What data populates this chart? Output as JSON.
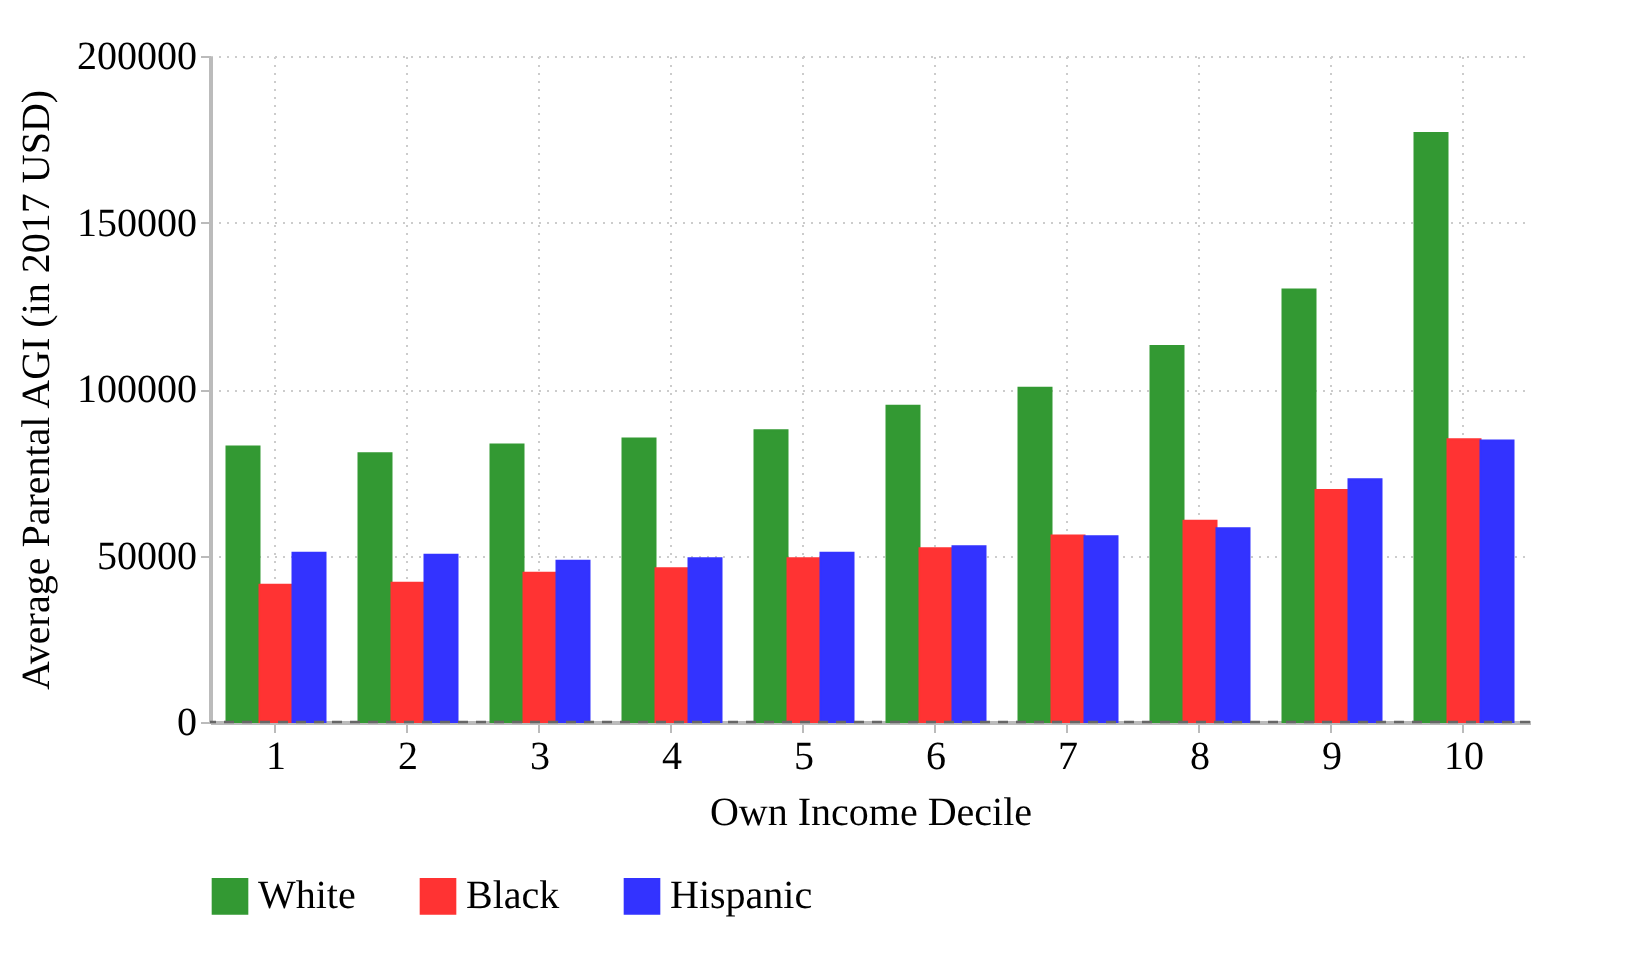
{
  "chart_data": {
    "type": "bar",
    "xlabel": "Own Income Decile",
    "ylabel": "Average Parental AGI (in 2017 USD)",
    "categories": [
      "1",
      "2",
      "3",
      "4",
      "5",
      "6",
      "7",
      "8",
      "9",
      "10"
    ],
    "series": [
      {
        "name": "White",
        "color": "#339933",
        "values": [
          82700,
          80700,
          83300,
          85100,
          87600,
          95000,
          100400,
          112900,
          129900,
          176900
        ]
      },
      {
        "name": "Black",
        "color": "#ff3333",
        "values": [
          41200,
          41800,
          44800,
          46200,
          49200,
          52200,
          56000,
          60400,
          69700,
          84900
        ]
      },
      {
        "name": "Hispanic",
        "color": "#3333ff",
        "values": [
          50800,
          50200,
          48400,
          49200,
          50800,
          52800,
          55800,
          58200,
          72900,
          84500
        ]
      }
    ],
    "ylim": [
      0,
      200000
    ],
    "yticks": [
      0,
      50000,
      100000,
      150000,
      200000
    ],
    "ref_lines": [
      {
        "axis": "y",
        "value": 0,
        "color": "#666666",
        "line_style": "dashed"
      }
    ],
    "grid": true,
    "legend": "bottom"
  }
}
